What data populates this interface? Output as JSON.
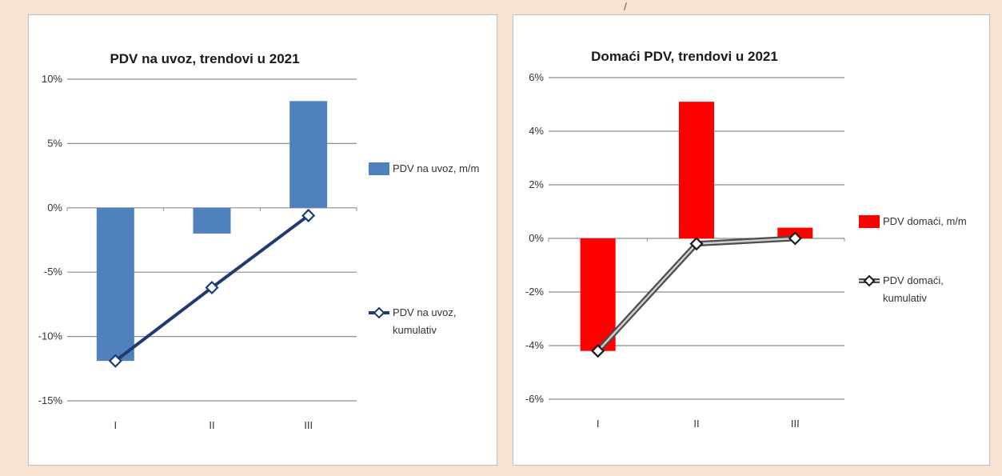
{
  "chart_data": [
    {
      "type": "bar+line",
      "title": "PDV na uvoz, trendovi u 2021",
      "categories": [
        "I",
        "II",
        "III"
      ],
      "y_ticks": [
        "10%",
        "5%",
        "0%",
        "-5%",
        "-10%",
        "-15%"
      ],
      "ylim": [
        -15,
        10
      ],
      "series": [
        {
          "name": "PDV na uvoz, m/m",
          "kind": "bar",
          "values": [
            -11.9,
            -2.0,
            8.3
          ],
          "color": "#4f81bd"
        },
        {
          "name": "PDV na uvoz, kumulativ",
          "kind": "line",
          "values": [
            -11.9,
            -6.2,
            -0.6
          ],
          "color": "#1f3b73"
        }
      ],
      "legend": [
        {
          "lines": [
            "PDV na uvoz, m/m"
          ]
        },
        {
          "lines": [
            "PDV na uvoz,",
            "kumulativ"
          ]
        }
      ],
      "legend_position": "right",
      "grid": true
    },
    {
      "type": "bar+line",
      "title": "Domaći PDV, trendovi u 2021",
      "categories": [
        "I",
        "II",
        "III"
      ],
      "y_ticks": [
        "6%",
        "4%",
        "2%",
        "0%",
        "-2%",
        "-4%",
        "-6%"
      ],
      "ylim": [
        -6,
        6
      ],
      "series": [
        {
          "name": "PDV domaći, m/m",
          "kind": "bar",
          "values": [
            -4.2,
            5.1,
            0.4
          ],
          "color": "#ff0000"
        },
        {
          "name": "PDV domaći, kumulativ",
          "kind": "line",
          "values": [
            -4.2,
            -0.2,
            0.0
          ],
          "color": "#4d4d4d"
        }
      ],
      "legend": [
        {
          "lines": [
            "PDV domaći, m/m"
          ]
        },
        {
          "lines": [
            "PDV domaći,",
            "kumulativ"
          ]
        }
      ],
      "legend_position": "right",
      "grid": true
    }
  ]
}
